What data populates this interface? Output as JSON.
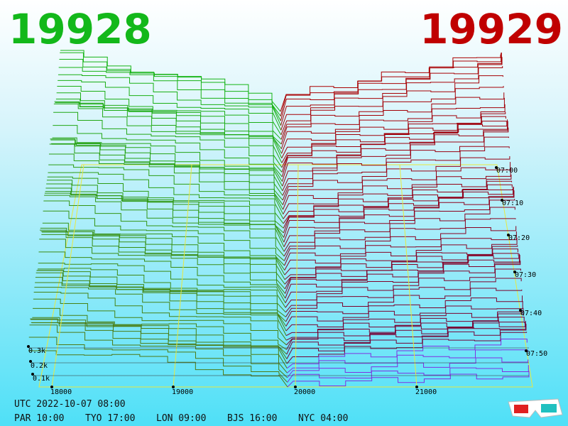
{
  "header": {
    "bid": "19928",
    "ask": "19929"
  },
  "price_axis": [
    "18000",
    "19000",
    "20000",
    "21000"
  ],
  "depth_axis": [
    "0.3k",
    "0.2k",
    "0.1k"
  ],
  "time_axis": [
    "07:00",
    "07:10",
    "07:20",
    "07:30",
    "07:40",
    "07:50"
  ],
  "footer": {
    "utc": "UTC 2022-10-07 08:00",
    "cities": [
      "PAR 10:00",
      "TYO 17:00",
      "LON 09:00",
      "BJS 16:00",
      "NYC 04:00"
    ]
  }
}
